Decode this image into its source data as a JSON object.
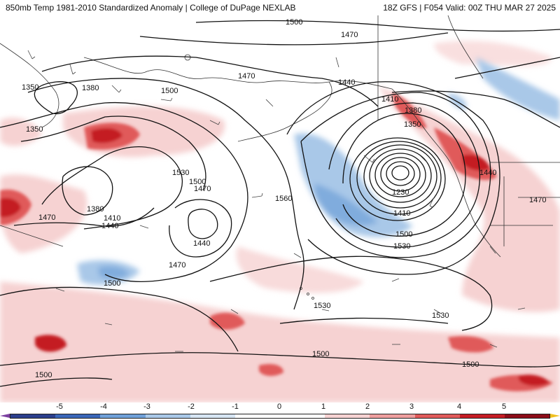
{
  "header": {
    "left_title": "850mb Temp 1981-2010 Standardized Anomaly | College of DuPage NEXLAB",
    "right_title": "18Z GFS | F054 Valid: 00Z THU MAR 27 2025"
  },
  "colorbar": {
    "ticks": [
      "-5",
      "-4",
      "-3",
      "-2",
      "-1",
      "0",
      "1",
      "2",
      "3",
      "4",
      "5"
    ],
    "colors": [
      "#2b3f8c",
      "#3a66b8",
      "#6fa0d8",
      "#a9c8e8",
      "#d6e5f3",
      "#ffffff",
      "#ffffff",
      "#f6d2d2",
      "#ee9e9e",
      "#e05a5a",
      "#c41c24",
      "#8c0c18"
    ],
    "low_color": "#7b3fa0",
    "high_color": "#f0c020"
  },
  "map": {
    "height_labels": [
      "1500",
      "1470",
      "1470",
      "1440",
      "1350",
      "1380",
      "1500",
      "1350",
      "1410",
      "1380",
      "1350",
      "1530",
      "1500",
      "1470",
      "1560",
      "1440",
      "1440",
      "1470",
      "1380",
      "1410",
      "1440",
      "1470",
      "1230",
      "1410",
      "1500",
      "1530",
      "1470",
      "1500",
      "1530",
      "1530",
      "1500",
      "1500",
      "1500"
    ]
  }
}
